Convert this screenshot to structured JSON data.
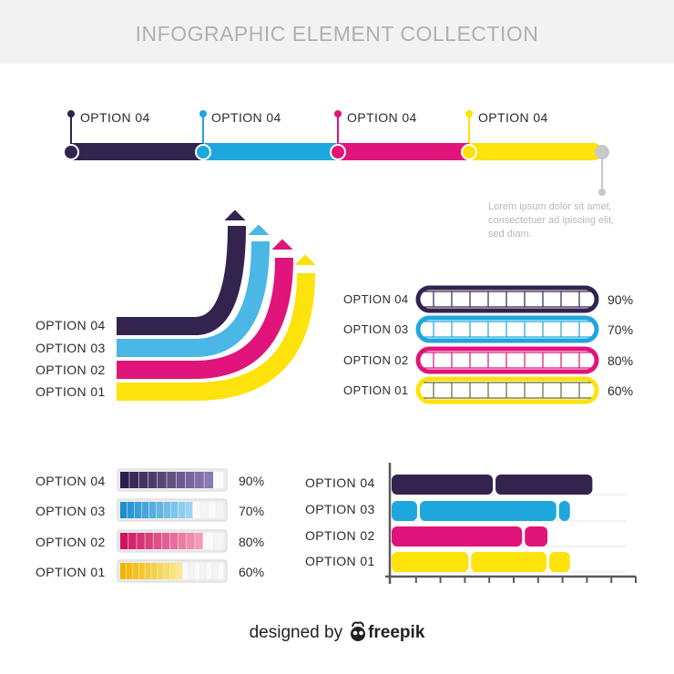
{
  "header": {
    "title": "INFOGRAPHIC ELEMENT COLLECTION"
  },
  "colors": {
    "purple": "#33234f",
    "blue": "#1ea7dc",
    "pink": "#e0147a",
    "yellow": "#fde20c",
    "gray": "#c8c8c8"
  },
  "timeline": {
    "labels": [
      "OPTION 04",
      "OPTION 04",
      "OPTION 04",
      "OPTION 04"
    ],
    "note": "Lorem ipsum dolor sit amet, consectetuer ad ipiscing elit, sed diam."
  },
  "arrows": {
    "labels": [
      "OPTION 04",
      "OPTION 03",
      "OPTION 02",
      "OPTION 01"
    ]
  },
  "pill_bars": {
    "items": [
      {
        "label": "OPTION 04",
        "percent": "90%",
        "value": 90
      },
      {
        "label": "OPTION 03",
        "percent": "70%",
        "value": 70
      },
      {
        "label": "OPTION 02",
        "percent": "80%",
        "value": 80
      },
      {
        "label": "OPTION 01",
        "percent": "60%",
        "value": 60
      }
    ]
  },
  "progress_bars": {
    "items": [
      {
        "label": "OPTION 04",
        "percent": "90%",
        "value": 90
      },
      {
        "label": "OPTION 03",
        "percent": "70%",
        "value": 70
      },
      {
        "label": "OPTION 02",
        "percent": "80%",
        "value": 80
      },
      {
        "label": "OPTION 01",
        "percent": "60%",
        "value": 60
      }
    ]
  },
  "chart_data": {
    "type": "bar",
    "orientation": "horizontal",
    "categories": [
      "OPTION 04",
      "OPTION 03",
      "OPTION 02",
      "OPTION 01"
    ],
    "values": [
      9,
      8,
      7,
      8
    ],
    "xlim": [
      0,
      10
    ],
    "grid": true,
    "legend": "none"
  },
  "footer": {
    "prefix": "designed by",
    "brand": "freepik"
  }
}
